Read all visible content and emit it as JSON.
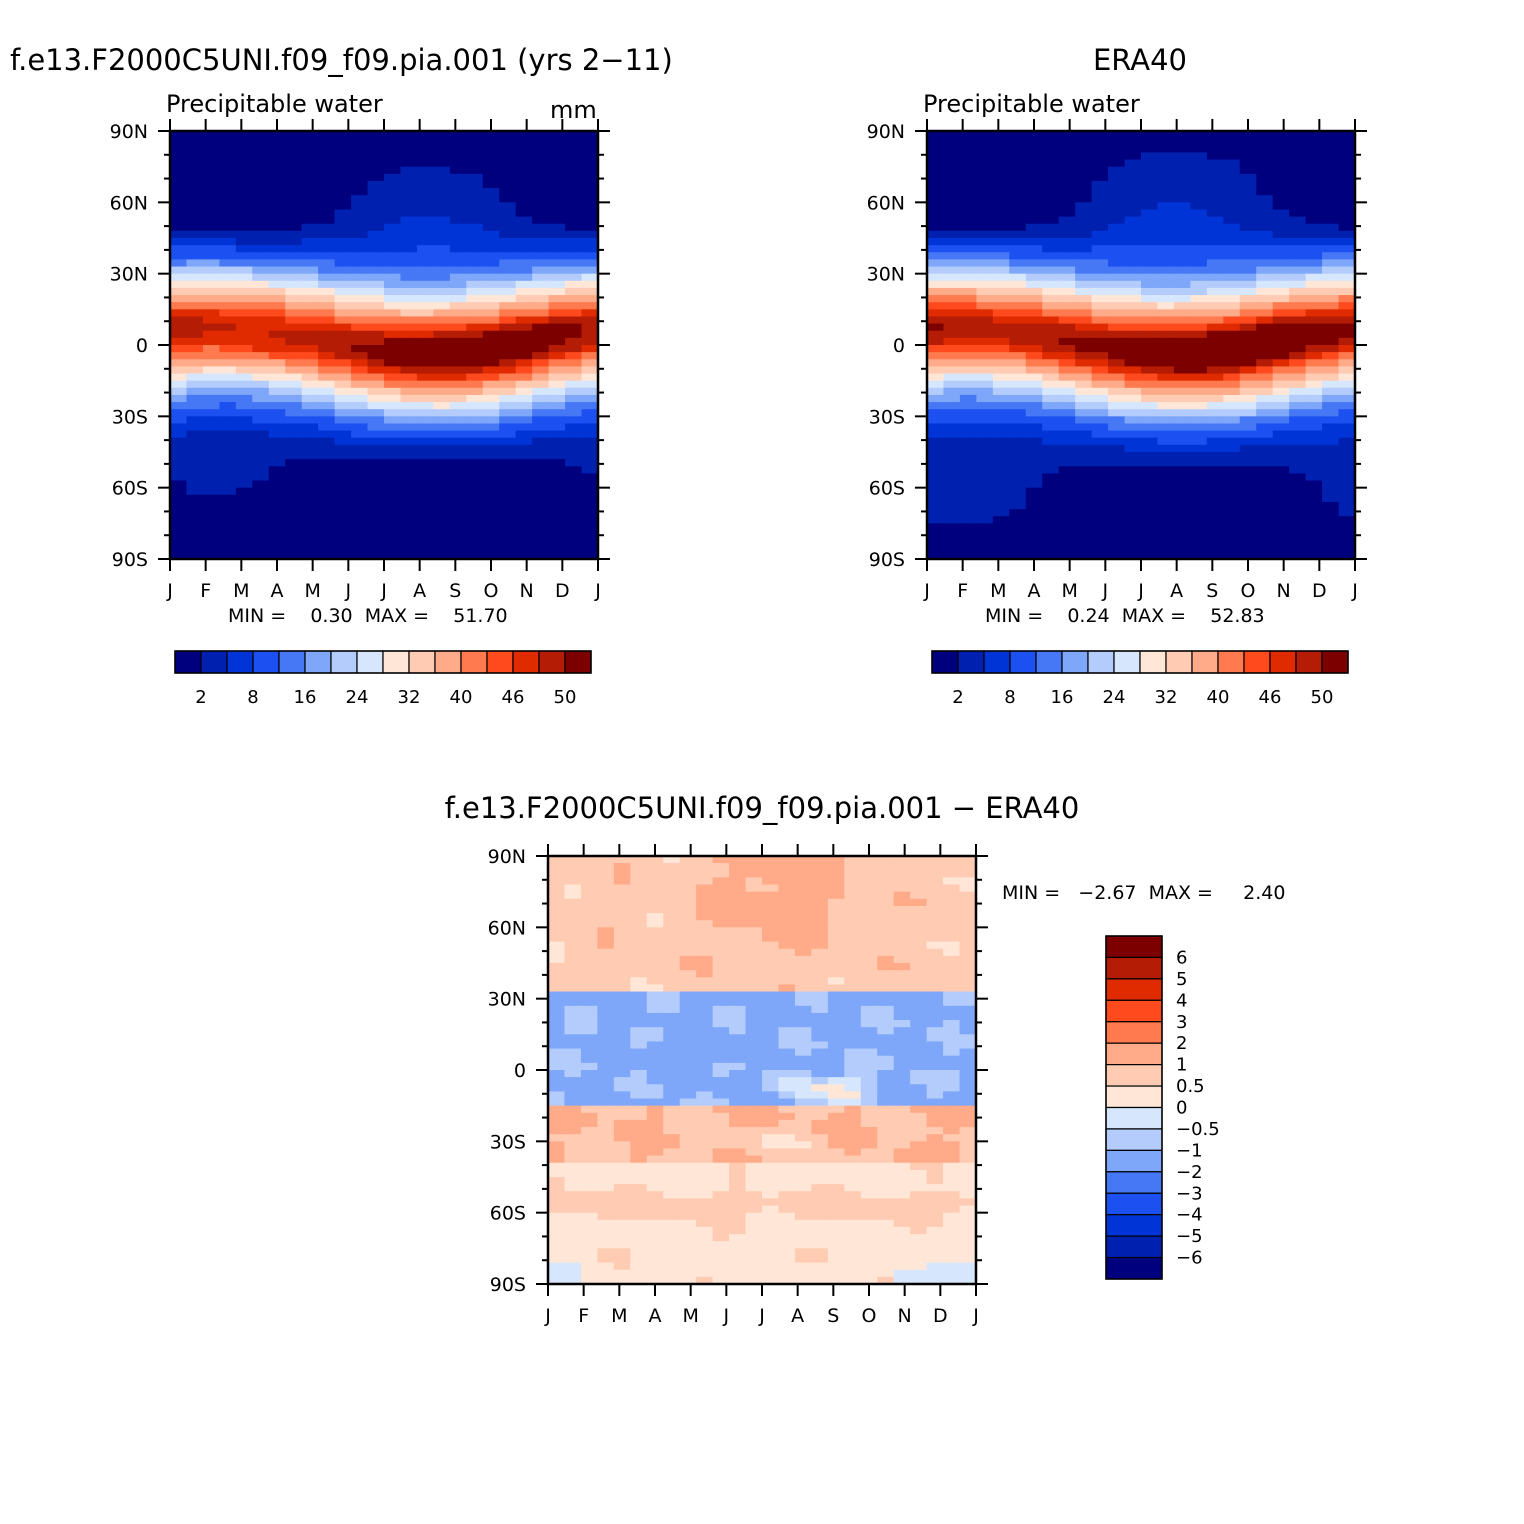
{
  "chart_data": [
    {
      "type": "heatmap",
      "title": "f.e13.F2000C5UNI.f09_f09.pia.001 (yrs 2−11)",
      "subtitle": "Precipitable water",
      "units": "mm",
      "x_tick_labels": [
        "J",
        "F",
        "M",
        "A",
        "M",
        "J",
        "J",
        "A",
        "S",
        "O",
        "N",
        "D",
        "J"
      ],
      "y_tick_labels": [
        "90N",
        "60N",
        "30N",
        "0",
        "30S",
        "60S",
        "90S"
      ],
      "ylim": [
        -90,
        90
      ],
      "stats_label": "MIN =    0.30  MAX =    51.70",
      "min": 0.3,
      "max": 51.7,
      "colorbar": {
        "colors": [
          "#00007f",
          "#0020b0",
          "#0034d6",
          "#1c50f0",
          "#4678f5",
          "#7ea6f9",
          "#b3ccfb",
          "#d6e6fc",
          "#ffe6d6",
          "#ffcbb2",
          "#ffaa88",
          "#ff7a4e",
          "#ff4a1e",
          "#e02a00",
          "#b51c05",
          "#7d0000"
        ],
        "tick_labels": [
          "2",
          "8",
          "16",
          "24",
          "32",
          "40",
          "46",
          "50"
        ],
        "levels": [
          2,
          5,
          8,
          12,
          16,
          20,
          24,
          28,
          32,
          36,
          40,
          44,
          46,
          48,
          50
        ],
        "orientation": "horizontal"
      },
      "peak_month_index": 6.8,
      "zonal_profile_mm_annual_mean": [
        [
          -90,
          1.5
        ],
        [
          -75,
          4
        ],
        [
          -60,
          8
        ],
        [
          -45,
          15
        ],
        [
          -30,
          26
        ],
        [
          -15,
          38
        ],
        [
          0,
          47
        ],
        [
          8,
          50
        ],
        [
          15,
          42
        ],
        [
          30,
          26
        ],
        [
          45,
          15
        ],
        [
          60,
          8
        ],
        [
          75,
          4
        ],
        [
          90,
          2.5
        ]
      ]
    },
    {
      "type": "heatmap",
      "title": "ERA40",
      "subtitle": "Precipitable water",
      "x_tick_labels": [
        "J",
        "F",
        "M",
        "A",
        "M",
        "J",
        "J",
        "A",
        "S",
        "O",
        "N",
        "D",
        "J"
      ],
      "y_tick_labels": [
        "90N",
        "60N",
        "30N",
        "0",
        "30S",
        "60S",
        "90S"
      ],
      "ylim": [
        -90,
        90
      ],
      "stats_label": "MIN =    0.24  MAX =    52.83",
      "min": 0.24,
      "max": 52.83,
      "colorbar": {
        "colors": [
          "#00007f",
          "#0020b0",
          "#0034d6",
          "#1c50f0",
          "#4678f5",
          "#7ea6f9",
          "#b3ccfb",
          "#d6e6fc",
          "#ffe6d6",
          "#ffcbb2",
          "#ffaa88",
          "#ff7a4e",
          "#ff4a1e",
          "#e02a00",
          "#b51c05",
          "#7d0000"
        ],
        "tick_labels": [
          "2",
          "8",
          "16",
          "24",
          "32",
          "40",
          "46",
          "50"
        ],
        "levels": [
          2,
          5,
          8,
          12,
          16,
          20,
          24,
          28,
          32,
          36,
          40,
          44,
          46,
          48,
          50
        ],
        "orientation": "horizontal"
      }
    },
    {
      "type": "heatmap",
      "title": "f.e13.F2000C5UNI.f09_f09.pia.001 − ERA40",
      "x_tick_labels": [
        "J",
        "F",
        "M",
        "A",
        "M",
        "J",
        "J",
        "A",
        "S",
        "O",
        "N",
        "D",
        "J"
      ],
      "y_tick_labels": [
        "90N",
        "60N",
        "30N",
        "0",
        "30S",
        "60S",
        "90S"
      ],
      "ylim": [
        -90,
        90
      ],
      "stats_label": "MIN =   −2.67  MAX =     2.40",
      "min": -2.67,
      "max": 2.4,
      "colorbar": {
        "colors": [
          "#7d0000",
          "#b51c05",
          "#e02a00",
          "#ff4a1e",
          "#ff7a4e",
          "#ffaa88",
          "#ffcbb2",
          "#ffe6d6",
          "#d6e6fc",
          "#b3ccfb",
          "#7ea6f9",
          "#4678f5",
          "#1c50f0",
          "#0034d6",
          "#0020b0",
          "#00007f"
        ],
        "tick_labels": [
          "6",
          "5",
          "4",
          "3",
          "2",
          "1",
          "0.5",
          "0",
          "−0.5",
          "−1",
          "−2",
          "−3",
          "−4",
          "−5",
          "−6"
        ],
        "orientation": "vertical"
      },
      "zonal_bands": [
        {
          "lat_range": [
            32,
            90
          ],
          "sign": "positive",
          "typical": 0.7
        },
        {
          "lat_range": [
            -15,
            32
          ],
          "sign": "negative",
          "typical": -1.2
        },
        {
          "lat_range": [
            -40,
            -15
          ],
          "sign": "positive",
          "typical": 1.0
        },
        {
          "lat_range": [
            -90,
            -40
          ],
          "sign": "positive",
          "typical": 0.3
        }
      ]
    }
  ]
}
